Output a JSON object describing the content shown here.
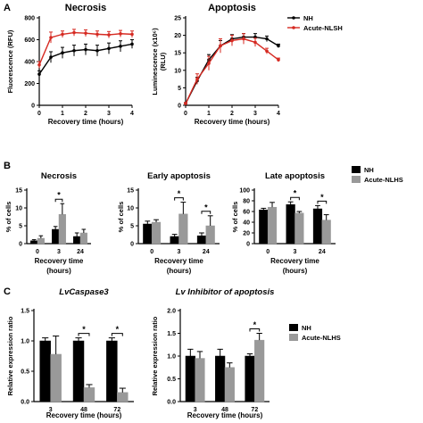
{
  "panel_letters": [
    "A",
    "B",
    "C"
  ],
  "chart_data": [
    {
      "type": "line",
      "title": "Necrosis",
      "xlabel": "Recovery time (hours)",
      "ylabel": "Fluorescence (RFU)",
      "xlim": [
        0,
        4
      ],
      "ylim": [
        0,
        800
      ],
      "xticks": [
        "0",
        "1",
        "2",
        "3",
        "4"
      ],
      "yticks": [
        "0",
        "200",
        "400",
        "600",
        "800"
      ],
      "series": [
        {
          "color": "#000000",
          "x": [
            0,
            0.5,
            1,
            1.5,
            2,
            2.5,
            3,
            3.5,
            4
          ],
          "y": [
            285,
            440,
            480,
            500,
            510,
            500,
            520,
            540,
            560
          ],
          "err": [
            30,
            50,
            50,
            50,
            50,
            50,
            50,
            50,
            40
          ]
        },
        {
          "color": "#d62a22",
          "x": [
            0,
            0.5,
            1,
            1.5,
            2,
            2.5,
            3,
            3.5,
            4
          ],
          "y": [
            370,
            620,
            650,
            665,
            660,
            650,
            645,
            655,
            650
          ],
          "err": [
            30,
            50,
            30,
            30,
            30,
            30,
            30,
            30,
            30
          ]
        }
      ]
    },
    {
      "type": "line",
      "title": "Apoptosis",
      "xlabel": "Recovery time (hours)",
      "ylabel": "Luminescence (x10⁶) (RLU)",
      "xlim": [
        0,
        4
      ],
      "ylim": [
        0,
        25
      ],
      "xticks": [
        "0",
        "1",
        "2",
        "3",
        "4"
      ],
      "yticks": [
        "0",
        "5",
        "10",
        "15",
        "20",
        "25"
      ],
      "legend": {
        "position": "top-right",
        "entries": [
          {
            "label": "NH",
            "color": "#000000"
          },
          {
            "label": "Acute-NLSH",
            "color": "#d62a22"
          }
        ]
      },
      "series": [
        {
          "color": "#000000",
          "x": [
            0,
            0.5,
            1,
            1.5,
            2,
            2.5,
            3,
            3.5,
            4
          ],
          "y": [
            0.5,
            7,
            13,
            17,
            19,
            19.5,
            19.5,
            19,
            17
          ],
          "err": [
            0.3,
            1,
            1.5,
            1.5,
            1.2,
            1,
            1,
            0.8,
            0.5
          ]
        },
        {
          "color": "#d62a22",
          "x": [
            0,
            0.5,
            1,
            1.5,
            2,
            2.5,
            3,
            3.5,
            4
          ],
          "y": [
            0.5,
            7.5,
            12,
            17,
            18.5,
            19,
            18,
            15.5,
            13
          ],
          "err": [
            0.3,
            1.5,
            2,
            2,
            1.5,
            1.5,
            1.2,
            0.8,
            0.5
          ]
        }
      ]
    },
    {
      "type": "bar",
      "title": "Necrosis",
      "xlabel": "Recovery time (hours)",
      "ylabel": "% of cells",
      "ylim": [
        0,
        15
      ],
      "categories": [
        "0",
        "3",
        "24"
      ],
      "yticks": [
        "0",
        "5",
        "10",
        "15"
      ],
      "series": [
        {
          "color": "#000000",
          "values": [
            0.8,
            4,
            2
          ],
          "err": [
            0.3,
            0.8,
            1
          ]
        },
        {
          "color": "#999999",
          "values": [
            1.5,
            8.2,
            3
          ],
          "err": [
            0.7,
            3,
            1
          ]
        }
      ],
      "significance": [
        {
          "category": 1,
          "label": "*"
        }
      ]
    },
    {
      "type": "bar",
      "title": "Early apoptosis",
      "xlabel": "Recovery time (hours)",
      "ylabel": "% of cells",
      "ylim": [
        0,
        15
      ],
      "categories": [
        "0",
        "3",
        "24"
      ],
      "yticks": [
        "0",
        "5",
        "10",
        "15"
      ],
      "series": [
        {
          "color": "#000000",
          "values": [
            5.5,
            2,
            2.2
          ],
          "err": [
            0.8,
            0.6,
            0.8
          ]
        },
        {
          "color": "#999999",
          "values": [
            6,
            8.3,
            5
          ],
          "err": [
            0.7,
            3.3,
            2.8
          ]
        }
      ],
      "significance": [
        {
          "category": 1,
          "label": "*"
        },
        {
          "category": 2,
          "label": "*"
        }
      ]
    },
    {
      "type": "bar",
      "title": "Late apoptosis",
      "xlabel": "Recovery time (hours)",
      "ylabel": "% of cells",
      "ylim": [
        0,
        100
      ],
      "categories": [
        "0",
        "3",
        "24"
      ],
      "yticks": [
        "0",
        "20",
        "40",
        "60",
        "80",
        "100"
      ],
      "legend": {
        "position": "right",
        "entries": [
          {
            "label": "NH",
            "color": "#000000"
          },
          {
            "label": "Acute-NLHS",
            "color": "#999999"
          }
        ]
      },
      "series": [
        {
          "color": "#000000",
          "values": [
            63,
            73,
            65
          ],
          "err": [
            3,
            5,
            6
          ]
        },
        {
          "color": "#999999",
          "values": [
            68,
            57,
            44
          ],
          "err": [
            9,
            3,
            10
          ]
        }
      ],
      "significance": [
        {
          "category": 1,
          "label": "*"
        },
        {
          "category": 2,
          "label": "*"
        }
      ]
    },
    {
      "type": "bar",
      "title": "LvCaspase3",
      "xlabel": "Recovery time (hours)",
      "ylabel": "Relative expression ratio",
      "ylim": [
        0,
        1.5
      ],
      "categories": [
        "3",
        "48",
        "72"
      ],
      "yticks": [
        "0.0",
        "0.5",
        "1.0",
        "1.5"
      ],
      "series": [
        {
          "color": "#000000",
          "values": [
            1,
            1,
            1
          ],
          "err": [
            0.05,
            0.05,
            0.05
          ]
        },
        {
          "color": "#999999",
          "values": [
            0.78,
            0.23,
            0.15
          ],
          "err": [
            0.3,
            0.05,
            0.07
          ]
        }
      ],
      "significance": [
        {
          "category": 1,
          "label": "*"
        },
        {
          "category": 2,
          "label": "*"
        }
      ]
    },
    {
      "type": "bar",
      "title": "Lv Inhibitor of apoptosis",
      "xlabel": "Recovery time (hours)",
      "ylabel": "Relative expression ratio",
      "ylim": [
        0,
        2.0
      ],
      "categories": [
        "3",
        "48",
        "72"
      ],
      "yticks": [
        "0.0",
        "0.5",
        "1.0",
        "1.5",
        "2.0"
      ],
      "legend": {
        "position": "right",
        "entries": [
          {
            "label": "NH",
            "color": "#000000"
          },
          {
            "label": "Acute-NLHS",
            "color": "#999999"
          }
        ]
      },
      "series": [
        {
          "color": "#000000",
          "values": [
            1,
            1,
            1
          ],
          "err": [
            0.15,
            0.15,
            0.05
          ]
        },
        {
          "color": "#999999",
          "values": [
            0.95,
            0.75,
            1.35
          ],
          "err": [
            0.15,
            0.1,
            0.15
          ]
        }
      ],
      "significance": [
        {
          "category": 2,
          "label": "*"
        }
      ]
    }
  ]
}
